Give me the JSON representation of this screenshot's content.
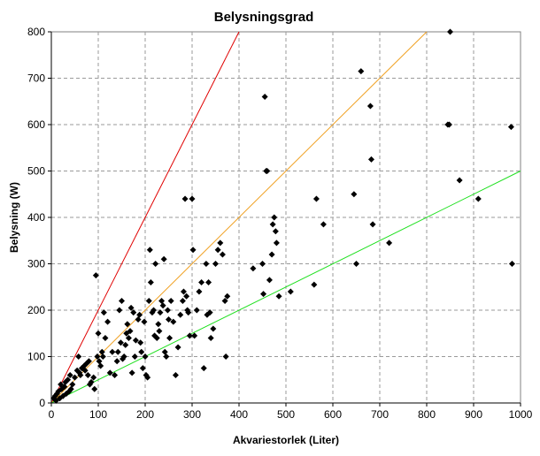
{
  "chart_data": {
    "type": "scatter",
    "title": "Belysningsgrad",
    "xlabel": "Akvariestorlek (Liter)",
    "ylabel": "Belysning (W)",
    "xlim": [
      0,
      1000
    ],
    "ylim": [
      0,
      800
    ],
    "xticks": [
      0,
      100,
      200,
      300,
      400,
      500,
      600,
      700,
      800,
      900,
      1000
    ],
    "yticks": [
      0,
      100,
      200,
      300,
      400,
      500,
      600,
      700,
      800
    ],
    "grid": true,
    "legend": "none",
    "marker_color": "#000000",
    "reference_lines": [
      {
        "slope": 2,
        "color": "#e00000",
        "points": [
          [
            0,
            0
          ],
          [
            400,
            800
          ]
        ]
      },
      {
        "slope": 1,
        "color": "#f0a020",
        "points": [
          [
            0,
            0
          ],
          [
            800,
            800
          ]
        ]
      },
      {
        "slope": 0.5,
        "color": "#20e020",
        "points": [
          [
            0,
            0
          ],
          [
            1000,
            500
          ]
        ]
      }
    ],
    "points": [
      [
        5,
        10
      ],
      [
        8,
        15
      ],
      [
        10,
        5
      ],
      [
        12,
        20
      ],
      [
        15,
        25
      ],
      [
        18,
        10
      ],
      [
        20,
        40
      ],
      [
        22,
        30
      ],
      [
        25,
        15
      ],
      [
        28,
        35
      ],
      [
        30,
        45
      ],
      [
        32,
        20
      ],
      [
        35,
        50
      ],
      [
        38,
        25
      ],
      [
        40,
        60
      ],
      [
        42,
        30
      ],
      [
        45,
        40
      ],
      [
        50,
        55
      ],
      [
        55,
        70
      ],
      [
        58,
        100
      ],
      [
        60,
        65
      ],
      [
        62,
        60
      ],
      [
        65,
        75
      ],
      [
        70,
        80
      ],
      [
        72,
        70
      ],
      [
        75,
        85
      ],
      [
        78,
        60
      ],
      [
        80,
        90
      ],
      [
        82,
        40
      ],
      [
        85,
        45
      ],
      [
        90,
        55
      ],
      [
        92,
        30
      ],
      [
        95,
        275
      ],
      [
        98,
        100
      ],
      [
        100,
        150
      ],
      [
        102,
        90
      ],
      [
        105,
        80
      ],
      [
        108,
        110
      ],
      [
        110,
        100
      ],
      [
        112,
        195
      ],
      [
        115,
        140
      ],
      [
        120,
        175
      ],
      [
        125,
        65
      ],
      [
        130,
        110
      ],
      [
        135,
        60
      ],
      [
        140,
        90
      ],
      [
        142,
        110
      ],
      [
        145,
        200
      ],
      [
        148,
        130
      ],
      [
        150,
        220
      ],
      [
        152,
        95
      ],
      [
        155,
        100
      ],
      [
        158,
        125
      ],
      [
        160,
        150
      ],
      [
        162,
        170
      ],
      [
        165,
        140
      ],
      [
        168,
        155
      ],
      [
        170,
        205
      ],
      [
        172,
        65
      ],
      [
        175,
        195
      ],
      [
        178,
        100
      ],
      [
        180,
        135
      ],
      [
        185,
        180
      ],
      [
        188,
        190
      ],
      [
        190,
        130
      ],
      [
        192,
        110
      ],
      [
        195,
        75
      ],
      [
        198,
        175
      ],
      [
        200,
        100
      ],
      [
        202,
        60
      ],
      [
        205,
        55
      ],
      [
        208,
        220
      ],
      [
        210,
        330
      ],
      [
        212,
        260
      ],
      [
        215,
        195
      ],
      [
        218,
        200
      ],
      [
        220,
        145
      ],
      [
        222,
        300
      ],
      [
        225,
        140
      ],
      [
        228,
        170
      ],
      [
        230,
        155
      ],
      [
        232,
        195
      ],
      [
        235,
        220
      ],
      [
        238,
        210
      ],
      [
        240,
        310
      ],
      [
        242,
        110
      ],
      [
        245,
        100
      ],
      [
        248,
        200
      ],
      [
        250,
        180
      ],
      [
        252,
        140
      ],
      [
        255,
        220
      ],
      [
        260,
        175
      ],
      [
        265,
        60
      ],
      [
        270,
        120
      ],
      [
        275,
        190
      ],
      [
        280,
        220
      ],
      [
        282,
        240
      ],
      [
        285,
        440
      ],
      [
        288,
        230
      ],
      [
        290,
        200
      ],
      [
        292,
        195
      ],
      [
        295,
        145
      ],
      [
        300,
        440
      ],
      [
        302,
        330
      ],
      [
        305,
        145
      ],
      [
        310,
        200
      ],
      [
        315,
        240
      ],
      [
        320,
        260
      ],
      [
        325,
        75
      ],
      [
        330,
        300
      ],
      [
        332,
        190
      ],
      [
        335,
        260
      ],
      [
        338,
        195
      ],
      [
        340,
        140
      ],
      [
        345,
        160
      ],
      [
        350,
        300
      ],
      [
        355,
        330
      ],
      [
        360,
        345
      ],
      [
        365,
        320
      ],
      [
        370,
        220
      ],
      [
        372,
        100
      ],
      [
        375,
        230
      ],
      [
        430,
        290
      ],
      [
        450,
        300
      ],
      [
        452,
        235
      ],
      [
        455,
        660
      ],
      [
        458,
        500
      ],
      [
        460,
        500
      ],
      [
        465,
        265
      ],
      [
        470,
        320
      ],
      [
        472,
        385
      ],
      [
        475,
        400
      ],
      [
        478,
        370
      ],
      [
        480,
        345
      ],
      [
        485,
        230
      ],
      [
        510,
        240
      ],
      [
        560,
        255
      ],
      [
        565,
        440
      ],
      [
        580,
        385
      ],
      [
        645,
        450
      ],
      [
        650,
        300
      ],
      [
        660,
        715
      ],
      [
        680,
        640
      ],
      [
        682,
        525
      ],
      [
        685,
        385
      ],
      [
        720,
        345
      ],
      [
        845,
        600
      ],
      [
        848,
        600
      ],
      [
        850,
        800
      ],
      [
        870,
        480
      ],
      [
        910,
        440
      ],
      [
        980,
        595
      ],
      [
        982,
        300
      ]
    ]
  }
}
